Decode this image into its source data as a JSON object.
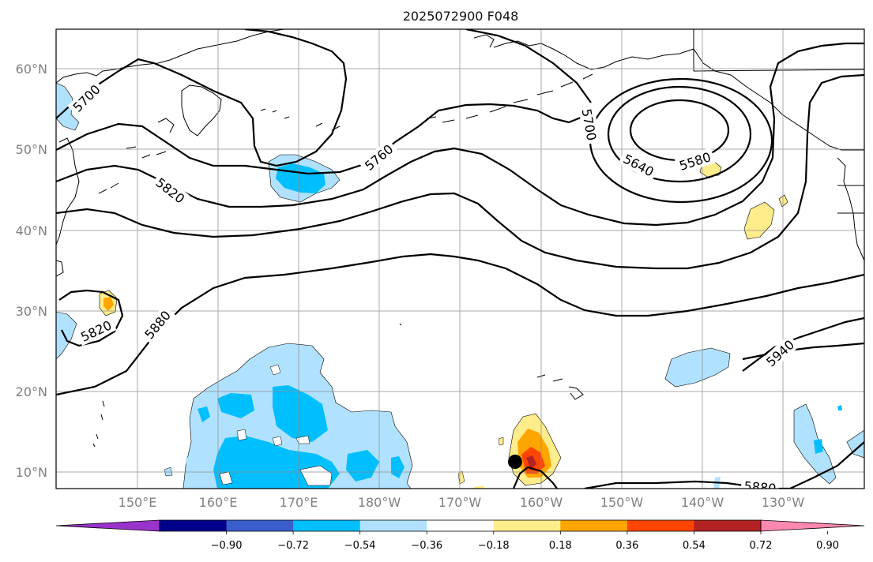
{
  "title": "2025072900 F048",
  "map": {
    "lat_labels": [
      "60°N",
      "50°N",
      "40°N",
      "30°N",
      "20°N",
      "10°N"
    ],
    "lon_labels": [
      "150°E",
      "160°E",
      "170°E",
      "180°W",
      "170°W",
      "160°W",
      "150°W",
      "140°W",
      "130°W"
    ],
    "contour_labels": [
      "5700",
      "5760",
      "5820",
      "5700",
      "5640",
      "5580",
      "5820",
      "5880",
      "5940",
      "5880"
    ],
    "grid": true,
    "marker": "storm-center"
  },
  "colorbar": {
    "colors": [
      "#9933cc",
      "#00008b",
      "#3a5fcd",
      "#00bfff",
      "#b0e2ff",
      "#ffffff",
      "#ffec8b",
      "#ffa500",
      "#ff4500",
      "#b22222",
      "#ff88b0"
    ],
    "tick_labels": [
      "−0.90",
      "−0.72",
      "−0.54",
      "−0.36",
      "−0.18",
      "0.18",
      "0.36",
      "0.54",
      "0.72",
      "0.90"
    ]
  }
}
